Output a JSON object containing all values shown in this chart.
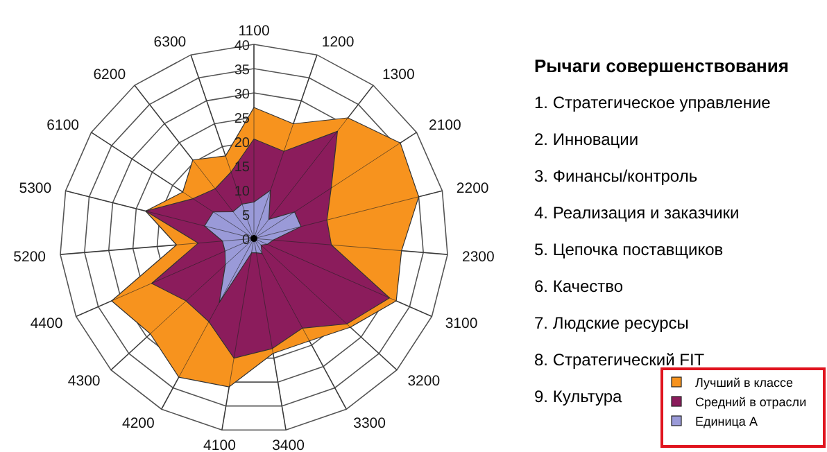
{
  "chart_data": {
    "type": "radar",
    "title": "Рычаги совершенствования",
    "categories": [
      "1100",
      "1200",
      "1300",
      "2100",
      "2200",
      "2300",
      "3100",
      "3200",
      "3300",
      "3400",
      "4100",
      "4200",
      "4300",
      "4400",
      "5200",
      "5300",
      "6100",
      "6200",
      "6300"
    ],
    "series": [
      {
        "name": "Лучший в классе",
        "color": "#f7931e",
        "values": [
          27,
          25,
          31.5,
          36,
          35,
          30.5,
          32,
          27,
          24,
          24,
          31,
          32.5,
          29,
          32,
          16,
          23,
          17.5,
          20.5,
          18
        ]
      },
      {
        "name": "Средний в отрасли",
        "color": "#8b1c5c",
        "values": [
          20.5,
          19,
          28,
          19,
          15.5,
          16,
          30.5,
          26,
          21,
          23,
          25,
          19.5,
          19,
          23,
          11.5,
          23,
          15,
          13,
          14.5
        ]
      },
      {
        "name": "Единица А",
        "color": "#9a9ad8",
        "values": [
          7.5,
          10.5,
          5,
          10,
          10,
          4,
          3,
          2,
          3.5,
          3,
          3,
          15,
          8,
          6.5,
          6.5,
          10.5,
          10,
          7,
          7.5
        ]
      }
    ],
    "ylim": [
      0,
      40
    ],
    "yticks": [
      0,
      5,
      10,
      15,
      20,
      25,
      30,
      35,
      40
    ],
    "grid": true,
    "legend": "bottom right",
    "annotations": [
      "1. Стратегическое управление",
      "2. Инновации",
      "3. Финансы/контроль",
      "4. Реализация и заказчики",
      "5. Цепочка поставщиков",
      "6. Качество",
      "7. Людские ресурсы",
      "8. Стратегический FIT",
      "9. Культура"
    ]
  }
}
